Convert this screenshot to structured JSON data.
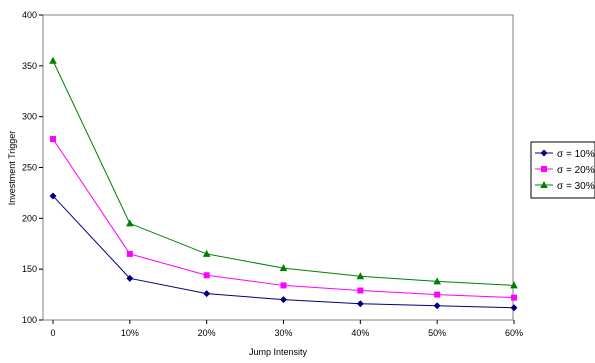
{
  "chart_data": {
    "type": "line",
    "title": "",
    "xlabel": "Jump Intensity",
    "ylabel": "Investment Trigger",
    "categories": [
      "0",
      "10%",
      "20%",
      "30%",
      "40%",
      "50%",
      "60%"
    ],
    "ylim": [
      100,
      400
    ],
    "yticks": [
      "100",
      "150",
      "200",
      "250",
      "300",
      "350",
      "400"
    ],
    "grid": false,
    "legend_position": "right",
    "series": [
      {
        "name": "σ  = 10%",
        "values": [
          222,
          141,
          126,
          120,
          116,
          114,
          112
        ],
        "color": "#000080",
        "marker": "diamond"
      },
      {
        "name": "σ  = 20%",
        "values": [
          278,
          165,
          144,
          134,
          129,
          125,
          122
        ],
        "color": "#ff00ff",
        "marker": "square"
      },
      {
        "name": "σ  = 30%",
        "values": [
          355,
          195,
          165,
          151,
          143,
          138,
          134
        ],
        "color": "#008000",
        "marker": "triangle"
      }
    ]
  }
}
